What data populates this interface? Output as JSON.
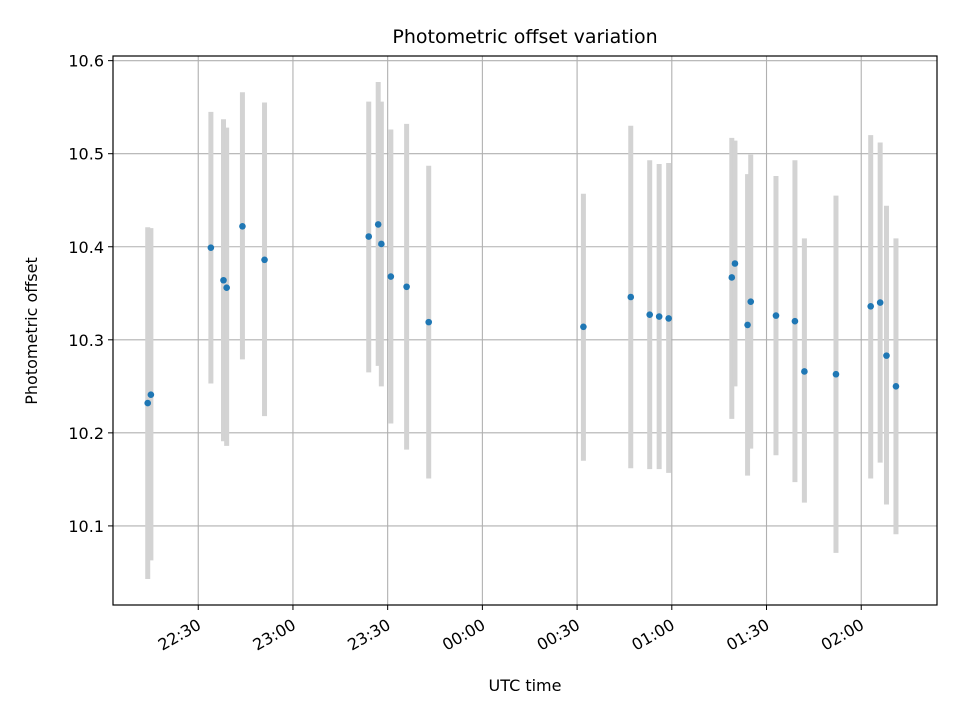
{
  "chart_data": {
    "type": "scatter",
    "title": "Photometric offset variation",
    "xlabel": "UTC time",
    "ylabel": "Photometric offset",
    "x_ticks": [
      "22:30",
      "23:00",
      "23:30",
      "00:00",
      "00:30",
      "01:00",
      "01:30",
      "02:00"
    ],
    "y_ticks": [
      "10.1",
      "10.2",
      "10.3",
      "10.4",
      "10.5",
      "10.6"
    ],
    "ylim": [
      10.015,
      10.605
    ],
    "xlim": [
      "22:03",
      "02:24"
    ],
    "grid": true,
    "marker_color": "#1f77b4",
    "errorbar_color": "#d3d3d3",
    "points": [
      {
        "x": "22:14",
        "y": 10.232,
        "low": 10.043,
        "high": 10.421
      },
      {
        "x": "22:15",
        "y": 10.241,
        "low": 10.063,
        "high": 10.42
      },
      {
        "x": "22:34",
        "y": 10.399,
        "low": 10.253,
        "high": 10.545
      },
      {
        "x": "22:38",
        "y": 10.364,
        "low": 10.191,
        "high": 10.537
      },
      {
        "x": "22:39",
        "y": 10.356,
        "low": 10.186,
        "high": 10.528
      },
      {
        "x": "22:44",
        "y": 10.422,
        "low": 10.279,
        "high": 10.566
      },
      {
        "x": "22:51",
        "y": 10.386,
        "low": 10.218,
        "high": 10.555
      },
      {
        "x": "23:24",
        "y": 10.411,
        "low": 10.265,
        "high": 10.556
      },
      {
        "x": "23:27",
        "y": 10.424,
        "low": 10.272,
        "high": 10.577
      },
      {
        "x": "23:28",
        "y": 10.403,
        "low": 10.25,
        "high": 10.556
      },
      {
        "x": "23:31",
        "y": 10.368,
        "low": 10.21,
        "high": 10.526
      },
      {
        "x": "23:36",
        "y": 10.357,
        "low": 10.182,
        "high": 10.532
      },
      {
        "x": "23:43",
        "y": 10.319,
        "low": 10.151,
        "high": 10.487
      },
      {
        "x": "00:32",
        "y": 10.314,
        "low": 10.17,
        "high": 10.457
      },
      {
        "x": "00:47",
        "y": 10.346,
        "low": 10.162,
        "high": 10.53
      },
      {
        "x": "00:53",
        "y": 10.327,
        "low": 10.161,
        "high": 10.493
      },
      {
        "x": "00:56",
        "y": 10.325,
        "low": 10.161,
        "high": 10.489
      },
      {
        "x": "00:59",
        "y": 10.323,
        "low": 10.157,
        "high": 10.49
      },
      {
        "x": "01:19",
        "y": 10.367,
        "low": 10.215,
        "high": 10.517
      },
      {
        "x": "01:20",
        "y": 10.382,
        "low": 10.25,
        "high": 10.514
      },
      {
        "x": "01:24",
        "y": 10.316,
        "low": 10.154,
        "high": 10.478
      },
      {
        "x": "01:25",
        "y": 10.341,
        "low": 10.183,
        "high": 10.499
      },
      {
        "x": "01:33",
        "y": 10.326,
        "low": 10.176,
        "high": 10.476
      },
      {
        "x": "01:39",
        "y": 10.32,
        "low": 10.147,
        "high": 10.493
      },
      {
        "x": "01:42",
        "y": 10.266,
        "low": 10.125,
        "high": 10.409
      },
      {
        "x": "01:52",
        "y": 10.263,
        "low": 10.071,
        "high": 10.455
      },
      {
        "x": "02:03",
        "y": 10.336,
        "low": 10.151,
        "high": 10.52
      },
      {
        "x": "02:06",
        "y": 10.34,
        "low": 10.168,
        "high": 10.512
      },
      {
        "x": "02:08",
        "y": 10.283,
        "low": 10.123,
        "high": 10.444
      },
      {
        "x": "02:11",
        "y": 10.25,
        "low": 10.091,
        "high": 10.409
      }
    ]
  }
}
